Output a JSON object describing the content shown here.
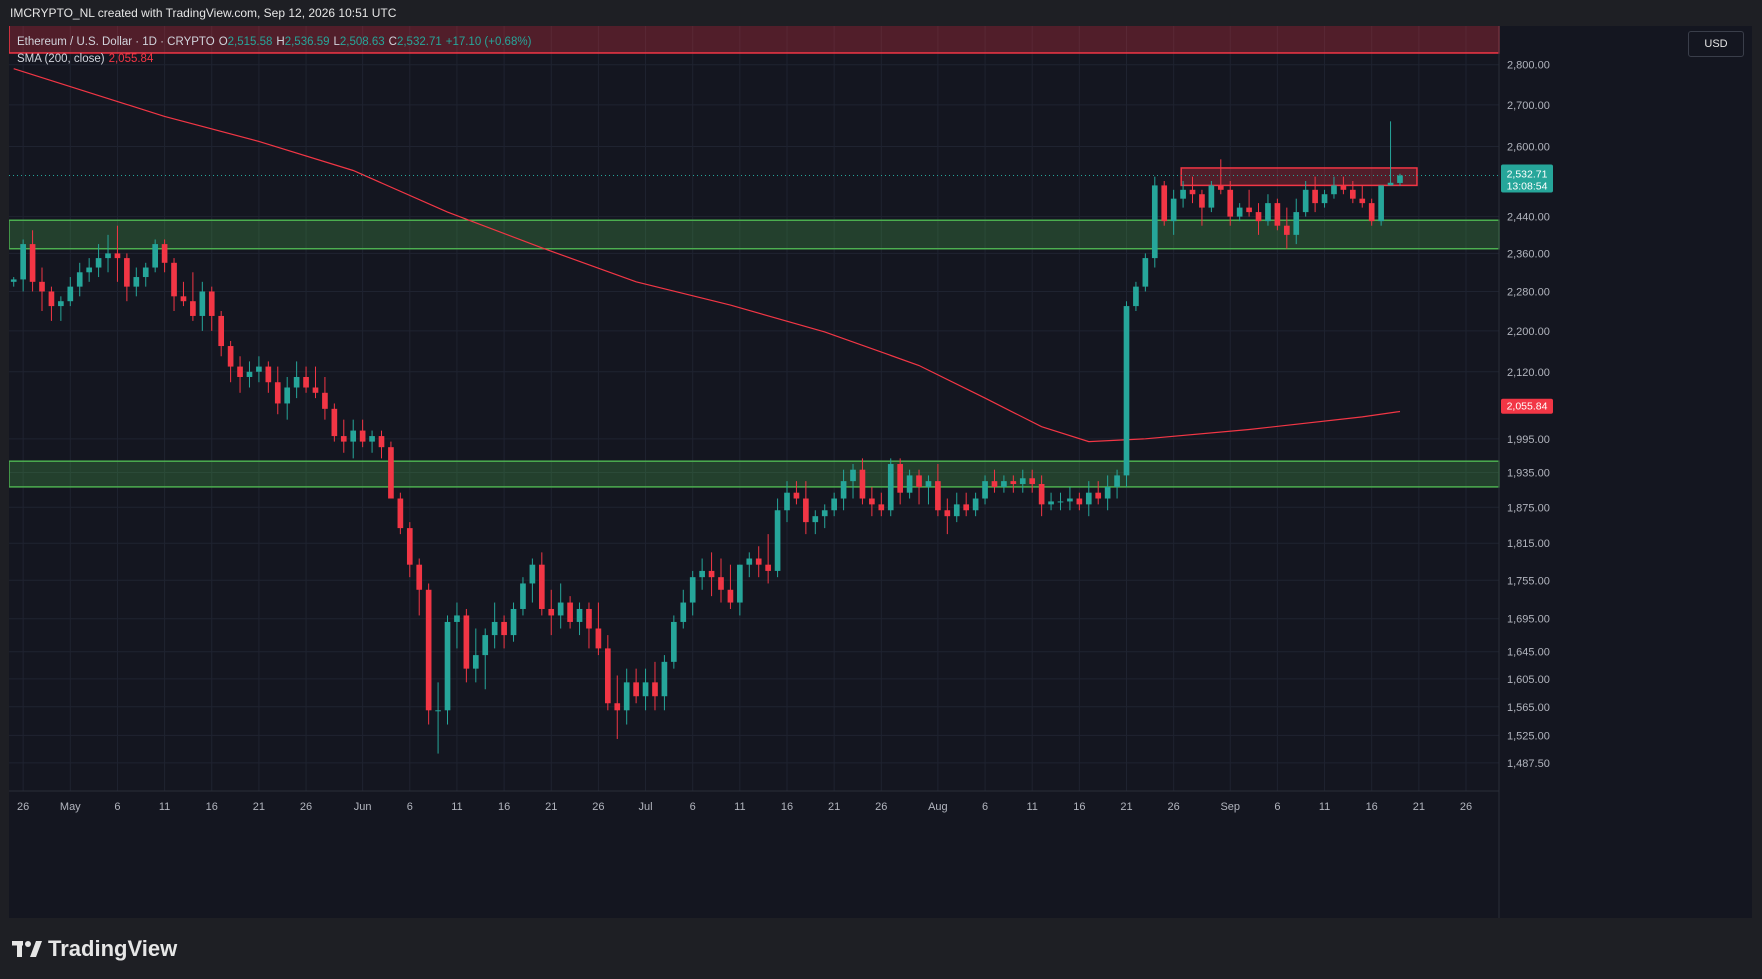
{
  "header": {
    "watermark_text": "IMCRYPTO_NL created with TradingView.com, Sep 12, 2026 10:51 UTC"
  },
  "legend": {
    "symbol": "Ethereum / U.S. Dollar · 1D · CRYPTO",
    "o_label": "O",
    "o_value": "2,515.58",
    "h_label": "H",
    "h_value": "2,536.59",
    "l_label": "L",
    "l_value": "2,508.63",
    "c_label": "C",
    "c_value": "2,532.71",
    "change": "+17.10 (+0.68%)",
    "sma_label": "SMA (200, close)",
    "sma_value": "2,055.84"
  },
  "currency_button": "USD",
  "footer": {
    "brand": "TradingView",
    "logo_icon": "tradingview-logo-icon"
  },
  "colors": {
    "up": "#26a69a",
    "down": "#f23645",
    "sma": "#f23645",
    "zone_green": "#4caf50",
    "zone_red": "#f23645",
    "background": "#141620"
  },
  "chart_data": {
    "type": "candlestick",
    "y_scale": "log",
    "ylim": [
      1450,
      2900
    ],
    "y_ticks": [
      "2,800.00",
      "2,700.00",
      "2,600.00",
      "2,440.00",
      "2,360.00",
      "2,280.00",
      "2,200.00",
      "2,120.00",
      "1,995.00",
      "1,935.00",
      "1,875.00",
      "1,815.00",
      "1,755.00",
      "1,695.00",
      "1,645.00",
      "1,605.00",
      "1,565.00",
      "1,525.00",
      "1,487.50"
    ],
    "y_tick_values": [
      2800,
      2700,
      2600,
      2440,
      2360,
      2280,
      2200,
      2120,
      1995,
      1935,
      1875,
      1815,
      1755,
      1695,
      1645,
      1605,
      1565,
      1525,
      1487.5
    ],
    "x_labels": [
      "26",
      "May",
      "6",
      "11",
      "16",
      "21",
      "26",
      "Jun",
      "6",
      "11",
      "16",
      "21",
      "26",
      "Jul",
      "6",
      "11",
      "16",
      "21",
      "26",
      "Aug",
      "6",
      "11",
      "16",
      "21",
      "26",
      "Sep",
      "6",
      "11",
      "16",
      "21",
      "26"
    ],
    "x_label_days": [
      -5,
      0,
      5,
      10,
      15,
      20,
      25,
      31,
      36,
      41,
      46,
      51,
      56,
      61,
      66,
      71,
      76,
      81,
      86,
      92,
      97,
      102,
      107,
      112,
      117,
      123,
      128,
      133,
      138,
      143,
      148
    ],
    "day_range": [
      -6.5,
      151.5
    ],
    "last_price": {
      "value": 2532.71,
      "label": "2,532.71",
      "countdown": "13:08:54"
    },
    "sma_price": {
      "value": 2055.84,
      "label": "2,055.84"
    },
    "zones": [
      {
        "kind": "support",
        "low": 2370,
        "high": 2432,
        "day_from": -6.5,
        "day_to": 151.5
      },
      {
        "kind": "support",
        "low": 1910,
        "high": 1955,
        "day_from": -6.5,
        "day_to": 151.5
      },
      {
        "kind": "resistance",
        "low": 2510,
        "high": 2550,
        "day_from": 117.8,
        "day_to": 142.8
      },
      {
        "kind": "resistance-top",
        "low": 2830,
        "high": 2990,
        "day_from": -6.5,
        "day_to": 151.5
      }
    ],
    "sma": [
      [
        -6,
        2790
      ],
      [
        10,
        2672
      ],
      [
        20,
        2612
      ],
      [
        30,
        2544
      ],
      [
        40,
        2450
      ],
      [
        50,
        2372
      ],
      [
        60,
        2300
      ],
      [
        70,
        2252
      ],
      [
        80,
        2198
      ],
      [
        90,
        2132
      ],
      [
        97,
        2070
      ],
      [
        103,
        2017
      ],
      [
        108,
        1990
      ],
      [
        114,
        1995
      ],
      [
        125,
        2012
      ],
      [
        137,
        2035
      ],
      [
        141,
        2045
      ]
    ],
    "candles": [
      [
        -6,
        2300,
        2310,
        2290,
        2305
      ],
      [
        -5,
        2305,
        2390,
        2280,
        2380
      ],
      [
        -4,
        2380,
        2410,
        2280,
        2300
      ],
      [
        -3,
        2300,
        2330,
        2240,
        2280
      ],
      [
        -2,
        2280,
        2290,
        2220,
        2250
      ],
      [
        -1,
        2250,
        2270,
        2220,
        2260
      ],
      [
        0,
        2260,
        2310,
        2250,
        2290
      ],
      [
        1,
        2290,
        2340,
        2270,
        2320
      ],
      [
        2,
        2320,
        2350,
        2300,
        2330
      ],
      [
        3,
        2330,
        2380,
        2310,
        2350
      ],
      [
        4,
        2350,
        2400,
        2320,
        2360
      ],
      [
        5,
        2360,
        2420,
        2300,
        2350
      ],
      [
        6,
        2350,
        2360,
        2260,
        2290
      ],
      [
        7,
        2290,
        2330,
        2270,
        2310
      ],
      [
        8,
        2310,
        2340,
        2290,
        2330
      ],
      [
        9,
        2330,
        2390,
        2320,
        2380
      ],
      [
        10,
        2380,
        2390,
        2320,
        2340
      ],
      [
        11,
        2340,
        2350,
        2240,
        2270
      ],
      [
        12,
        2270,
        2300,
        2250,
        2260
      ],
      [
        13,
        2260,
        2320,
        2220,
        2230
      ],
      [
        14,
        2230,
        2300,
        2200,
        2280
      ],
      [
        15,
        2280,
        2290,
        2200,
        2230
      ],
      [
        16,
        2230,
        2240,
        2150,
        2170
      ],
      [
        17,
        2170,
        2180,
        2100,
        2130
      ],
      [
        18,
        2130,
        2150,
        2080,
        2110
      ],
      [
        19,
        2110,
        2140,
        2090,
        2120
      ],
      [
        20,
        2120,
        2150,
        2100,
        2130
      ],
      [
        21,
        2130,
        2140,
        2080,
        2100
      ],
      [
        22,
        2100,
        2130,
        2040,
        2060
      ],
      [
        23,
        2060,
        2110,
        2030,
        2090
      ],
      [
        24,
        2090,
        2140,
        2070,
        2110
      ],
      [
        25,
        2110,
        2130,
        2080,
        2090
      ],
      [
        26,
        2090,
        2130,
        2070,
        2080
      ],
      [
        27,
        2080,
        2110,
        2030,
        2050
      ],
      [
        28,
        2050,
        2060,
        1990,
        2000
      ],
      [
        29,
        2000,
        2030,
        1970,
        1990
      ],
      [
        30,
        1990,
        2030,
        1960,
        2010
      ],
      [
        31,
        2010,
        2030,
        1980,
        1990
      ],
      [
        32,
        1990,
        2010,
        1970,
        2000
      ],
      [
        33,
        2000,
        2010,
        1960,
        1980
      ],
      [
        34,
        1980,
        1990,
        1900,
        1890
      ],
      [
        35,
        1890,
        1900,
        1830,
        1840
      ],
      [
        36,
        1840,
        1850,
        1760,
        1780
      ],
      [
        37,
        1780,
        1790,
        1700,
        1740
      ],
      [
        38,
        1740,
        1750,
        1540,
        1560
      ],
      [
        39,
        1560,
        1600,
        1500,
        1560
      ],
      [
        40,
        1560,
        1700,
        1540,
        1690
      ],
      [
        41,
        1690,
        1720,
        1650,
        1700
      ],
      [
        42,
        1700,
        1710,
        1600,
        1620
      ],
      [
        43,
        1620,
        1680,
        1600,
        1640
      ],
      [
        44,
        1640,
        1680,
        1590,
        1670
      ],
      [
        45,
        1670,
        1720,
        1650,
        1690
      ],
      [
        46,
        1690,
        1700,
        1650,
        1670
      ],
      [
        47,
        1670,
        1720,
        1660,
        1710
      ],
      [
        48,
        1710,
        1760,
        1700,
        1750
      ],
      [
        49,
        1750,
        1790,
        1720,
        1780
      ],
      [
        50,
        1780,
        1800,
        1700,
        1710
      ],
      [
        51,
        1710,
        1740,
        1670,
        1700
      ],
      [
        52,
        1700,
        1750,
        1680,
        1720
      ],
      [
        53,
        1720,
        1730,
        1680,
        1690
      ],
      [
        54,
        1690,
        1720,
        1670,
        1710
      ],
      [
        55,
        1710,
        1720,
        1650,
        1680
      ],
      [
        56,
        1680,
        1720,
        1640,
        1650
      ],
      [
        57,
        1650,
        1670,
        1560,
        1570
      ],
      [
        58,
        1570,
        1610,
        1520,
        1560
      ],
      [
        59,
        1560,
        1620,
        1540,
        1600
      ],
      [
        60,
        1600,
        1620,
        1570,
        1580
      ],
      [
        61,
        1580,
        1620,
        1560,
        1600
      ],
      [
        62,
        1600,
        1630,
        1560,
        1580
      ],
      [
        63,
        1580,
        1640,
        1560,
        1630
      ],
      [
        64,
        1630,
        1700,
        1620,
        1690
      ],
      [
        65,
        1690,
        1740,
        1680,
        1720
      ],
      [
        66,
        1720,
        1770,
        1700,
        1760
      ],
      [
        67,
        1760,
        1790,
        1740,
        1770
      ],
      [
        68,
        1770,
        1800,
        1730,
        1760
      ],
      [
        69,
        1760,
        1790,
        1720,
        1740
      ],
      [
        70,
        1740,
        1780,
        1710,
        1720
      ],
      [
        71,
        1720,
        1780,
        1700,
        1780
      ],
      [
        72,
        1780,
        1800,
        1760,
        1790
      ],
      [
        73,
        1790,
        1810,
        1760,
        1780
      ],
      [
        74,
        1780,
        1830,
        1750,
        1770
      ],
      [
        75,
        1770,
        1890,
        1760,
        1870
      ],
      [
        76,
        1870,
        1920,
        1850,
        1900
      ],
      [
        77,
        1900,
        1920,
        1880,
        1890
      ],
      [
        78,
        1890,
        1920,
        1830,
        1850
      ],
      [
        79,
        1850,
        1870,
        1830,
        1860
      ],
      [
        80,
        1860,
        1880,
        1840,
        1870
      ],
      [
        81,
        1870,
        1900,
        1860,
        1890
      ],
      [
        82,
        1890,
        1940,
        1870,
        1920
      ],
      [
        83,
        1920,
        1950,
        1890,
        1940
      ],
      [
        84,
        1940,
        1960,
        1880,
        1890
      ],
      [
        85,
        1890,
        1910,
        1860,
        1880
      ],
      [
        86,
        1880,
        1900,
        1860,
        1870
      ],
      [
        87,
        1870,
        1960,
        1860,
        1950
      ],
      [
        88,
        1950,
        1960,
        1880,
        1900
      ],
      [
        89,
        1900,
        1940,
        1890,
        1930
      ],
      [
        90,
        1930,
        1940,
        1880,
        1910
      ],
      [
        91,
        1910,
        1930,
        1880,
        1920
      ],
      [
        92,
        1920,
        1950,
        1860,
        1870
      ],
      [
        93,
        1870,
        1890,
        1830,
        1860
      ],
      [
        94,
        1860,
        1900,
        1850,
        1880
      ],
      [
        95,
        1880,
        1900,
        1860,
        1870
      ],
      [
        96,
        1870,
        1900,
        1860,
        1890
      ],
      [
        97,
        1890,
        1930,
        1880,
        1920
      ],
      [
        98,
        1920,
        1940,
        1900,
        1910
      ],
      [
        99,
        1910,
        1930,
        1900,
        1920
      ],
      [
        100,
        1920,
        1930,
        1900,
        1915
      ],
      [
        101,
        1915,
        1940,
        1900,
        1925
      ],
      [
        102,
        1925,
        1940,
        1900,
        1915
      ],
      [
        103,
        1915,
        1930,
        1860,
        1880
      ],
      [
        104,
        1880,
        1900,
        1870,
        1885
      ],
      [
        105,
        1885,
        1900,
        1870,
        1885
      ],
      [
        106,
        1885,
        1910,
        1870,
        1890
      ],
      [
        107,
        1890,
        1900,
        1870,
        1880
      ],
      [
        108,
        1880,
        1920,
        1860,
        1900
      ],
      [
        109,
        1900,
        1920,
        1880,
        1890
      ],
      [
        110,
        1890,
        1930,
        1870,
        1910
      ],
      [
        111,
        1910,
        1940,
        1890,
        1930
      ],
      [
        112,
        1930,
        2260,
        1910,
        2250
      ],
      [
        113,
        2250,
        2300,
        2240,
        2290
      ],
      [
        114,
        2290,
        2360,
        2280,
        2350
      ],
      [
        115,
        2350,
        2530,
        2330,
        2510
      ],
      [
        116,
        2510,
        2520,
        2420,
        2430
      ],
      [
        117,
        2430,
        2500,
        2400,
        2480
      ],
      [
        118,
        2480,
        2520,
        2460,
        2500
      ],
      [
        119,
        2500,
        2530,
        2470,
        2490
      ],
      [
        120,
        2490,
        2500,
        2420,
        2460
      ],
      [
        121,
        2460,
        2520,
        2450,
        2510
      ],
      [
        122,
        2510,
        2570,
        2490,
        2500
      ],
      [
        123,
        2500,
        2520,
        2420,
        2440
      ],
      [
        124,
        2440,
        2470,
        2430,
        2460
      ],
      [
        125,
        2460,
        2500,
        2440,
        2450
      ],
      [
        126,
        2450,
        2470,
        2400,
        2430
      ],
      [
        127,
        2430,
        2490,
        2420,
        2470
      ],
      [
        128,
        2470,
        2480,
        2410,
        2420
      ],
      [
        129,
        2420,
        2460,
        2370,
        2400
      ],
      [
        130,
        2400,
        2480,
        2380,
        2450
      ],
      [
        131,
        2450,
        2520,
        2440,
        2500
      ],
      [
        132,
        2500,
        2530,
        2450,
        2470
      ],
      [
        133,
        2470,
        2500,
        2460,
        2490
      ],
      [
        134,
        2490,
        2530,
        2480,
        2510
      ],
      [
        135,
        2510,
        2530,
        2490,
        2500
      ],
      [
        136,
        2500,
        2520,
        2470,
        2480
      ],
      [
        137,
        2480,
        2510,
        2460,
        2470
      ],
      [
        138,
        2470,
        2480,
        2420,
        2430
      ],
      [
        139,
        2430,
        2510,
        2420,
        2510
      ],
      [
        140,
        2510,
        2660,
        2510,
        2516
      ],
      [
        141,
        2515.58,
        2536.59,
        2508.63,
        2532.71
      ]
    ]
  }
}
